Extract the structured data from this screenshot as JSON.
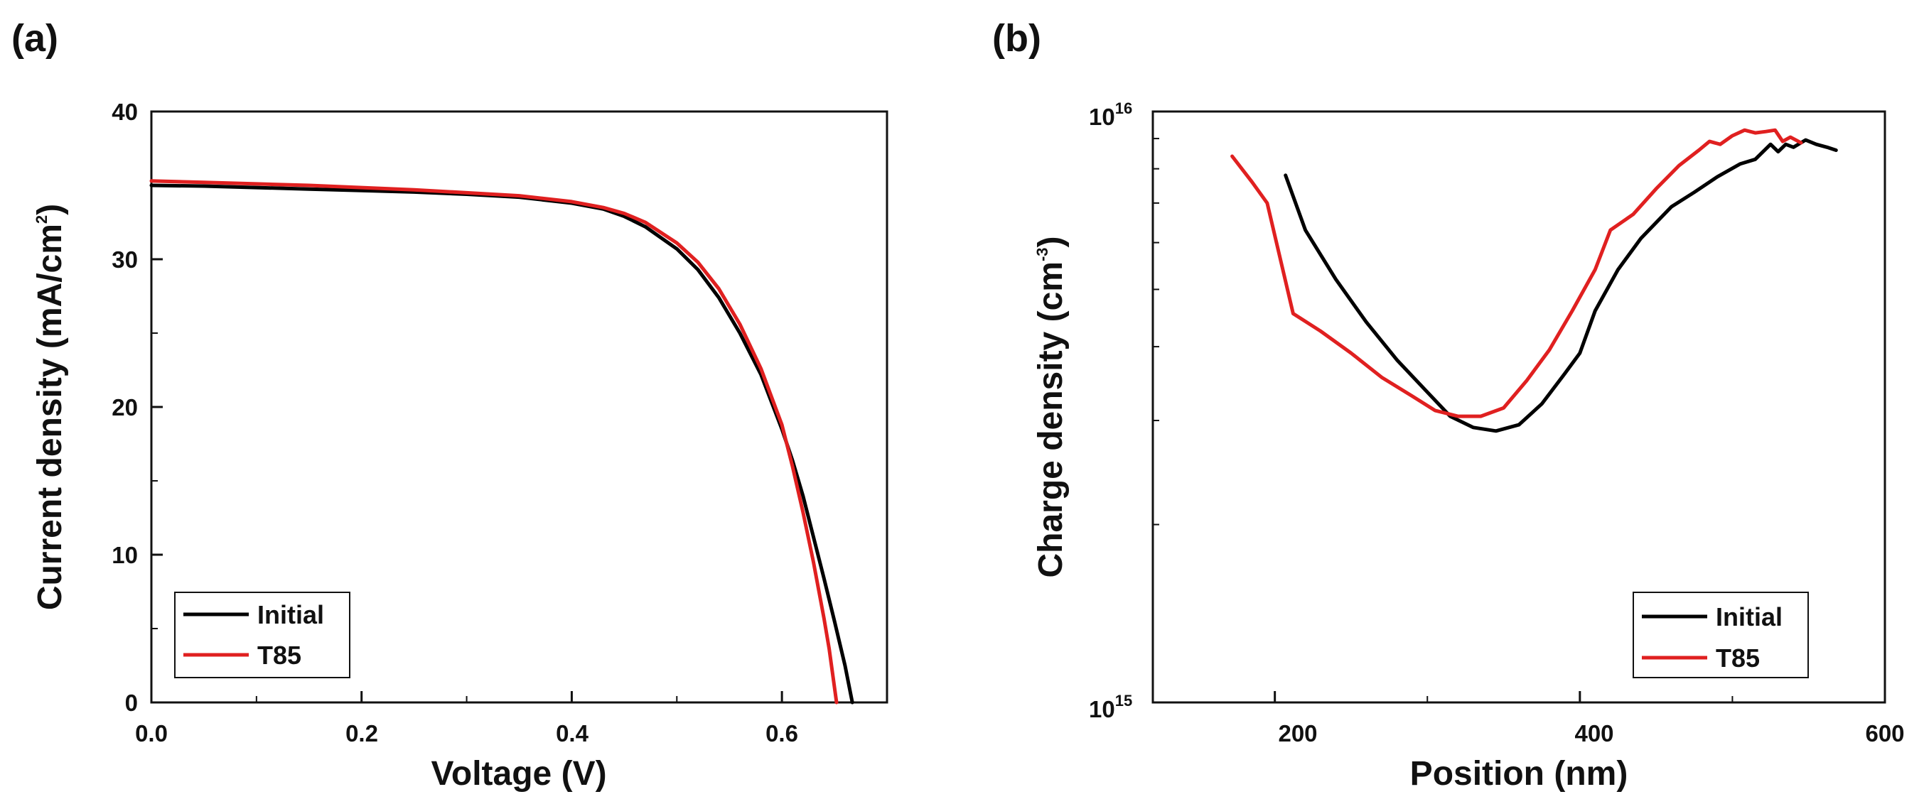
{
  "chart_data": [
    {
      "panel": "(a)",
      "type": "line",
      "xlabel": "Voltage (V)",
      "ylabel": "Current density (mA/cm",
      "ylabel_sup": "2",
      "ylabel_close": ")",
      "xlim": [
        0,
        0.7
      ],
      "ylim": [
        0,
        40
      ],
      "xticks": [
        "0.0",
        "0.2",
        "0.4",
        "0.6"
      ],
      "xtick_values": [
        0,
        0.2,
        0.4,
        0.6
      ],
      "yticks": [
        "0",
        "10",
        "20",
        "30",
        "40"
      ],
      "ytick_values": [
        0,
        10,
        20,
        30,
        40
      ],
      "legend": "bottom-left",
      "series": [
        {
          "name": "Initial",
          "color": "#000000",
          "points": [
            [
              0,
              35.0
            ],
            [
              0.05,
              34.95
            ],
            [
              0.1,
              34.85
            ],
            [
              0.15,
              34.75
            ],
            [
              0.2,
              34.65
            ],
            [
              0.25,
              34.55
            ],
            [
              0.3,
              34.4
            ],
            [
              0.35,
              34.2
            ],
            [
              0.4,
              33.8
            ],
            [
              0.43,
              33.4
            ],
            [
              0.45,
              32.9
            ],
            [
              0.47,
              32.2
            ],
            [
              0.5,
              30.7
            ],
            [
              0.52,
              29.3
            ],
            [
              0.54,
              27.4
            ],
            [
              0.56,
              25.0
            ],
            [
              0.58,
              22.2
            ],
            [
              0.6,
              18.5
            ],
            [
              0.61,
              16.4
            ],
            [
              0.62,
              14.0
            ],
            [
              0.63,
              11.2
            ],
            [
              0.64,
              8.4
            ],
            [
              0.65,
              5.5
            ],
            [
              0.66,
              2.5
            ],
            [
              0.667,
              0
            ]
          ]
        },
        {
          "name": "T85",
          "color": "#e02020",
          "points": [
            [
              0,
              35.3
            ],
            [
              0.05,
              35.2
            ],
            [
              0.1,
              35.1
            ],
            [
              0.15,
              35.0
            ],
            [
              0.2,
              34.85
            ],
            [
              0.25,
              34.7
            ],
            [
              0.3,
              34.5
            ],
            [
              0.35,
              34.3
            ],
            [
              0.4,
              33.9
            ],
            [
              0.43,
              33.5
            ],
            [
              0.45,
              33.1
            ],
            [
              0.47,
              32.5
            ],
            [
              0.5,
              31.1
            ],
            [
              0.52,
              29.8
            ],
            [
              0.54,
              28.0
            ],
            [
              0.56,
              25.6
            ],
            [
              0.58,
              22.6
            ],
            [
              0.6,
              18.8
            ],
            [
              0.61,
              16.0
            ],
            [
              0.62,
              12.9
            ],
            [
              0.63,
              9.5
            ],
            [
              0.64,
              5.7
            ],
            [
              0.645,
              3.6
            ],
            [
              0.652,
              0
            ]
          ]
        }
      ]
    },
    {
      "panel": "(b)",
      "type": "line",
      "xlabel": "Position (nm)",
      "ylabel": "Charge density (cm",
      "ylabel_sup": "-3",
      "ylabel_close": ")",
      "yscale": "log",
      "xlim": [
        120,
        600
      ],
      "ylim": [
        1000000000000000.0,
        1e+16
      ],
      "xticks": [
        "200",
        "400",
        "600"
      ],
      "xtick_values": [
        200,
        400,
        600
      ],
      "yticks": [
        {
          "base": "10",
          "exp": "15",
          "value": 1000000000000000.0
        },
        {
          "base": "10",
          "exp": "16",
          "value": 1e+16
        }
      ],
      "legend": "bottom-right",
      "series": [
        {
          "name": "Initial",
          "color": "#000000",
          "points": [
            [
              207,
              7800000000000000.0
            ],
            [
              220,
              6300000000000000.0
            ],
            [
              240,
              5200000000000000.0
            ],
            [
              260,
              4400000000000000.0
            ],
            [
              280,
              3800000000000000.0
            ],
            [
              300,
              3350000000000000.0
            ],
            [
              315,
              3050000000000000.0
            ],
            [
              330,
              2920000000000000.0
            ],
            [
              345,
              2880000000000000.0
            ],
            [
              360,
              2950000000000000.0
            ],
            [
              375,
              3200000000000000.0
            ],
            [
              390,
              3600000000000000.0
            ],
            [
              400,
              3900000000000000.0
            ],
            [
              410,
              4600000000000000.0
            ],
            [
              425,
              5400000000000000.0
            ],
            [
              440,
              6100000000000000.0
            ],
            [
              460,
              6900000000000000.0
            ],
            [
              475,
              7300000000000000.0
            ],
            [
              490,
              7750000000000000.0
            ],
            [
              505,
              8150000000000000.0
            ],
            [
              515,
              8300000000000000.0
            ],
            [
              525,
              8800000000000000.0
            ],
            [
              530,
              8550000000000000.0
            ],
            [
              535,
              8800000000000000.0
            ],
            [
              540,
              8700000000000000.0
            ],
            [
              548,
              8950000000000000.0
            ],
            [
              555,
              8800000000000000.0
            ],
            [
              562,
              8700000000000000.0
            ],
            [
              568,
              8600000000000000.0
            ]
          ]
        },
        {
          "name": "T85",
          "color": "#e02020",
          "points": [
            [
              172,
              8400000000000000.0
            ],
            [
              185,
              7600000000000000.0
            ],
            [
              195,
              7000000000000000.0
            ],
            [
              212,
              4550000000000000.0
            ],
            [
              230,
              4250000000000000.0
            ],
            [
              250,
              3900000000000000.0
            ],
            [
              270,
              3550000000000000.0
            ],
            [
              290,
              3300000000000000.0
            ],
            [
              305,
              3120000000000000.0
            ],
            [
              320,
              3050000000000000.0
            ],
            [
              335,
              3050000000000000.0
            ],
            [
              350,
              3150000000000000.0
            ],
            [
              365,
              3500000000000000.0
            ],
            [
              380,
              3950000000000000.0
            ],
            [
              395,
              4600000000000000.0
            ],
            [
              410,
              5400000000000000.0
            ],
            [
              420,
              6300000000000000.0
            ],
            [
              435,
              6700000000000000.0
            ],
            [
              450,
              7400000000000000.0
            ],
            [
              465,
              8100000000000000.0
            ],
            [
              478,
              8600000000000000.0
            ],
            [
              485,
              8900000000000000.0
            ],
            [
              492,
              8800000000000000.0
            ],
            [
              500,
              9100000000000000.0
            ],
            [
              508,
              9300000000000000.0
            ],
            [
              515,
              9200000000000000.0
            ],
            [
              522,
              9250000000000000.0
            ],
            [
              528,
              9300000000000000.0
            ],
            [
              533,
              8900000000000000.0
            ],
            [
              538,
              9050000000000000.0
            ],
            [
              545,
              8850000000000000.0
            ]
          ]
        }
      ]
    }
  ]
}
